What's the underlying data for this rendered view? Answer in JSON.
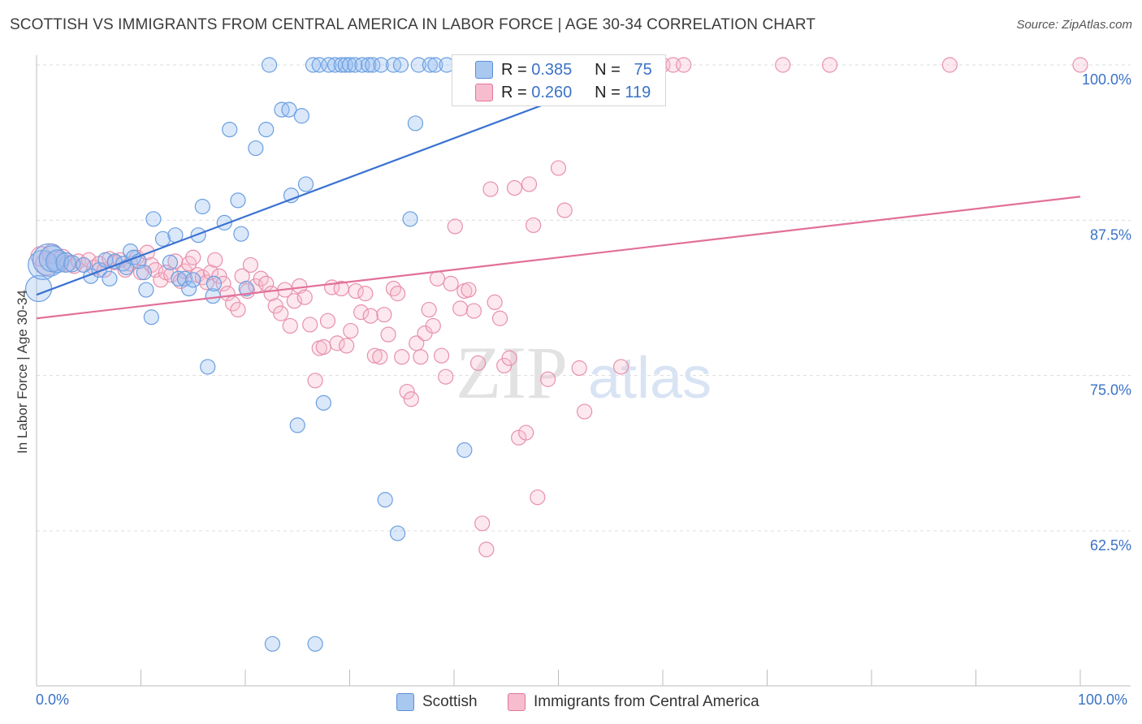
{
  "title": "SCOTTISH VS IMMIGRANTS FROM CENTRAL AMERICA IN LABOR FORCE | AGE 30-34 CORRELATION CHART",
  "source": "Source: ZipAtlas.com",
  "watermark": {
    "zip": "ZIP",
    "atlas": "atlas"
  },
  "legend_top": {
    "rows": [
      {
        "r_label": "R =",
        "r_value": "0.385",
        "n_label": "N =",
        "n_value": "75",
        "color": "#a9c8f0",
        "border": "#5b8fd6"
      },
      {
        "r_label": "R =",
        "r_value": "0.260",
        "n_label": "N =",
        "n_value": "119",
        "color": "#f7bccd",
        "border": "#e0789a"
      }
    ]
  },
  "bottom_legend": {
    "items": [
      {
        "label": "Scottish",
        "color": "#a9c8f0",
        "border": "#5b8fd6"
      },
      {
        "label": "Immigrants from Central America",
        "color": "#f7bccd",
        "border": "#e0789a"
      }
    ]
  },
  "chart_data": {
    "type": "scatter",
    "title": "SCOTTISH VS IMMIGRANTS FROM CENTRAL AMERICA IN LABOR FORCE | AGE 30-34 CORRELATION CHART",
    "xlabel": "",
    "ylabel": "In Labor Force | Age 30-34",
    "x_tick_labels": [
      "0.0%",
      "100.0%"
    ],
    "y_tick_labels": [
      "100.0%",
      "87.5%",
      "75.0%",
      "62.5%"
    ],
    "y_ticks": [
      100.0,
      87.5,
      75.0,
      62.5
    ],
    "xlim": [
      0,
      100
    ],
    "ylim": [
      50.0,
      100.8
    ],
    "grid": true,
    "legend_placement": "top-center",
    "series": [
      {
        "name": "Scottish",
        "color": "#6b9fe0",
        "fill": "rgba(150,190,240,0.35)",
        "trend": {
          "x": [
            0,
            60
          ],
          "y": [
            81.5,
            100.4
          ],
          "color": "#3a72d0"
        },
        "points": [
          [
            0.2,
            82.0,
            16
          ],
          [
            0.6,
            83.9,
            18
          ],
          [
            1.2,
            84.3,
            20
          ],
          [
            1.5,
            84.4,
            16
          ],
          [
            2.0,
            84.2,
            14
          ],
          [
            2.8,
            84.1,
            12
          ],
          [
            3.4,
            84.0,
            10
          ],
          [
            4.5,
            83.9,
            9
          ],
          [
            5.2,
            83.0,
            9
          ],
          [
            6.0,
            83.5,
            9
          ],
          [
            6.6,
            84.3,
            9
          ],
          [
            7.0,
            82.8,
            9
          ],
          [
            7.5,
            84.2,
            9
          ],
          [
            8.3,
            84.0,
            9
          ],
          [
            8.6,
            83.7,
            9
          ],
          [
            9.0,
            85.0,
            9
          ],
          [
            9.3,
            84.5,
            9
          ],
          [
            9.8,
            84.2,
            9
          ],
          [
            10.3,
            83.3,
            9
          ],
          [
            10.5,
            81.9,
            9
          ],
          [
            11.0,
            79.7,
            9
          ],
          [
            11.2,
            87.6,
            9
          ],
          [
            12.1,
            86.0,
            9
          ],
          [
            12.8,
            84.1,
            9
          ],
          [
            13.3,
            86.3,
            9
          ],
          [
            13.6,
            82.8,
            9
          ],
          [
            14.2,
            82.8,
            9
          ],
          [
            14.6,
            82.0,
            9
          ],
          [
            15.0,
            82.7,
            9
          ],
          [
            15.5,
            86.3,
            9
          ],
          [
            15.9,
            88.6,
            9
          ],
          [
            16.4,
            75.7,
            9
          ],
          [
            16.9,
            81.4,
            9
          ],
          [
            17.0,
            82.4,
            9
          ],
          [
            18.0,
            87.3,
            9
          ],
          [
            18.5,
            94.8,
            9
          ],
          [
            19.3,
            89.1,
            9
          ],
          [
            19.6,
            86.4,
            9
          ],
          [
            20.1,
            82.0,
            9
          ],
          [
            21.0,
            93.3,
            9
          ],
          [
            22.0,
            94.8,
            9
          ],
          [
            22.3,
            100.0,
            9
          ],
          [
            22.6,
            53.4,
            9
          ],
          [
            23.5,
            96.4,
            9
          ],
          [
            24.2,
            96.4,
            9
          ],
          [
            24.4,
            89.5,
            9
          ],
          [
            25.0,
            71.0,
            9
          ],
          [
            25.4,
            95.9,
            9
          ],
          [
            25.8,
            90.4,
            9
          ],
          [
            26.5,
            100.0,
            9
          ],
          [
            26.7,
            53.4,
            9
          ],
          [
            27.1,
            100.0,
            9
          ],
          [
            27.5,
            72.8,
            9
          ],
          [
            28.0,
            100.0,
            9
          ],
          [
            28.6,
            100.0,
            9
          ],
          [
            29.2,
            100.0,
            9
          ],
          [
            29.6,
            100.0,
            9
          ],
          [
            30.0,
            100.0,
            9
          ],
          [
            30.5,
            100.0,
            9
          ],
          [
            31.2,
            100.0,
            9
          ],
          [
            31.8,
            100.0,
            9
          ],
          [
            32.2,
            100.0,
            9
          ],
          [
            33.0,
            100.0,
            9
          ],
          [
            33.4,
            65.0,
            9
          ],
          [
            34.2,
            100.0,
            9
          ],
          [
            34.6,
            62.3,
            9
          ],
          [
            34.9,
            100.0,
            9
          ],
          [
            35.8,
            87.6,
            9
          ],
          [
            36.3,
            95.3,
            9
          ],
          [
            36.6,
            100.0,
            9
          ],
          [
            37.7,
            100.0,
            9
          ],
          [
            38.2,
            100.0,
            9
          ],
          [
            39.3,
            100.0,
            9
          ],
          [
            40.5,
            100.0,
            9
          ],
          [
            41.0,
            69.0,
            9
          ]
        ]
      },
      {
        "name": "Immigrants from Central America",
        "color": "#e890ac",
        "fill": "rgba(247,188,205,0.35)",
        "trend": {
          "x": [
            0,
            100
          ],
          "y": [
            79.6,
            89.4
          ],
          "color": "#e2709a"
        },
        "points": [
          [
            0.4,
            84.6,
            12
          ],
          [
            1.0,
            84.0,
            14
          ],
          [
            1.5,
            84.8,
            12
          ],
          [
            2.0,
            84.2,
            12
          ],
          [
            2.5,
            84.5,
            10
          ],
          [
            3.0,
            84.0,
            10
          ],
          [
            3.6,
            83.8,
            9
          ],
          [
            4.0,
            84.2,
            9
          ],
          [
            4.5,
            83.9,
            9
          ],
          [
            5.0,
            84.3,
            9
          ],
          [
            5.5,
            83.7,
            9
          ],
          [
            6.0,
            84.0,
            9
          ],
          [
            6.5,
            83.5,
            9
          ],
          [
            7.0,
            84.4,
            9
          ],
          [
            7.5,
            84.1,
            9
          ],
          [
            8.0,
            84.3,
            9
          ],
          [
            8.5,
            83.5,
            9
          ],
          [
            9.0,
            84.0,
            9
          ],
          [
            9.6,
            84.5,
            9
          ],
          [
            10.0,
            83.3,
            9
          ],
          [
            10.6,
            84.9,
            9
          ],
          [
            11.0,
            83.9,
            9
          ],
          [
            11.4,
            83.5,
            9
          ],
          [
            11.9,
            82.7,
            9
          ],
          [
            12.4,
            83.3,
            9
          ],
          [
            12.9,
            83.1,
            9
          ],
          [
            13.3,
            84.2,
            9
          ],
          [
            13.8,
            82.6,
            9
          ],
          [
            14.2,
            83.4,
            9
          ],
          [
            14.6,
            84.0,
            9
          ],
          [
            15.0,
            84.5,
            9
          ],
          [
            15.4,
            83.1,
            9
          ],
          [
            15.9,
            82.9,
            9
          ],
          [
            16.3,
            82.5,
            9
          ],
          [
            16.7,
            83.3,
            9
          ],
          [
            17.1,
            84.3,
            9
          ],
          [
            17.5,
            83.0,
            9
          ],
          [
            17.9,
            82.4,
            9
          ],
          [
            18.3,
            81.6,
            9
          ],
          [
            18.8,
            80.8,
            9
          ],
          [
            19.3,
            80.3,
            9
          ],
          [
            19.7,
            83.0,
            9
          ],
          [
            20.2,
            81.8,
            9
          ],
          [
            20.5,
            83.9,
            9
          ],
          [
            21.0,
            82.2,
            9
          ],
          [
            21.5,
            82.8,
            9
          ],
          [
            22.0,
            82.4,
            9
          ],
          [
            22.5,
            81.6,
            9
          ],
          [
            22.9,
            80.6,
            9
          ],
          [
            23.4,
            80.0,
            9
          ],
          [
            23.8,
            81.9,
            9
          ],
          [
            24.3,
            79.0,
            9
          ],
          [
            24.7,
            81.0,
            9
          ],
          [
            25.2,
            82.2,
            9
          ],
          [
            25.7,
            81.3,
            9
          ],
          [
            26.2,
            79.1,
            9
          ],
          [
            26.7,
            74.6,
            9
          ],
          [
            27.1,
            77.2,
            9
          ],
          [
            27.5,
            77.3,
            9
          ],
          [
            27.9,
            79.4,
            9
          ],
          [
            28.3,
            82.1,
            9
          ],
          [
            28.8,
            77.6,
            9
          ],
          [
            29.2,
            82.0,
            9
          ],
          [
            29.7,
            77.4,
            9
          ],
          [
            30.1,
            78.6,
            9
          ],
          [
            30.6,
            81.8,
            9
          ],
          [
            31.1,
            80.1,
            9
          ],
          [
            31.5,
            81.6,
            9
          ],
          [
            32.0,
            79.8,
            9
          ],
          [
            32.4,
            76.6,
            9
          ],
          [
            32.9,
            76.5,
            9
          ],
          [
            33.3,
            79.9,
            9
          ],
          [
            33.7,
            78.3,
            9
          ],
          [
            34.2,
            82.0,
            9
          ],
          [
            34.6,
            81.6,
            9
          ],
          [
            35.0,
            76.5,
            9
          ],
          [
            35.5,
            73.7,
            9
          ],
          [
            35.9,
            73.1,
            9
          ],
          [
            36.4,
            77.6,
            9
          ],
          [
            36.8,
            76.5,
            9
          ],
          [
            37.2,
            78.4,
            9
          ],
          [
            37.6,
            80.3,
            9
          ],
          [
            38.0,
            79.0,
            9
          ],
          [
            38.4,
            82.8,
            9
          ],
          [
            38.8,
            76.6,
            9
          ],
          [
            39.2,
            74.9,
            9
          ],
          [
            39.7,
            82.4,
            9
          ],
          [
            40.1,
            87.0,
            9
          ],
          [
            40.6,
            80.4,
            9
          ],
          [
            41.0,
            81.8,
            9
          ],
          [
            41.4,
            81.9,
            9
          ],
          [
            41.9,
            80.2,
            9
          ],
          [
            42.3,
            76.0,
            9
          ],
          [
            42.7,
            63.1,
            9
          ],
          [
            43.1,
            61.0,
            9
          ],
          [
            43.5,
            90.0,
            9
          ],
          [
            43.9,
            80.9,
            9
          ],
          [
            44.4,
            79.6,
            9
          ],
          [
            44.8,
            75.8,
            9
          ],
          [
            45.3,
            76.4,
            9
          ],
          [
            45.8,
            90.1,
            9
          ],
          [
            46.2,
            70.0,
            9
          ],
          [
            46.9,
            70.4,
            9
          ],
          [
            47.2,
            90.4,
            9
          ],
          [
            47.6,
            87.1,
            9
          ],
          [
            48.0,
            65.2,
            9
          ],
          [
            49.0,
            74.7,
            9
          ],
          [
            50.0,
            91.7,
            9
          ],
          [
            50.6,
            88.3,
            9
          ],
          [
            52.0,
            75.6,
            9
          ],
          [
            52.5,
            72.1,
            9
          ],
          [
            56.0,
            75.7,
            9
          ],
          [
            60.0,
            100.0,
            9
          ],
          [
            61.0,
            100.0,
            9
          ],
          [
            62.0,
            100.0,
            9
          ],
          [
            71.5,
            100.0,
            9
          ],
          [
            76.0,
            100.0,
            9
          ],
          [
            87.5,
            100.0,
            9
          ],
          [
            100.0,
            100.0,
            9
          ]
        ]
      }
    ]
  }
}
